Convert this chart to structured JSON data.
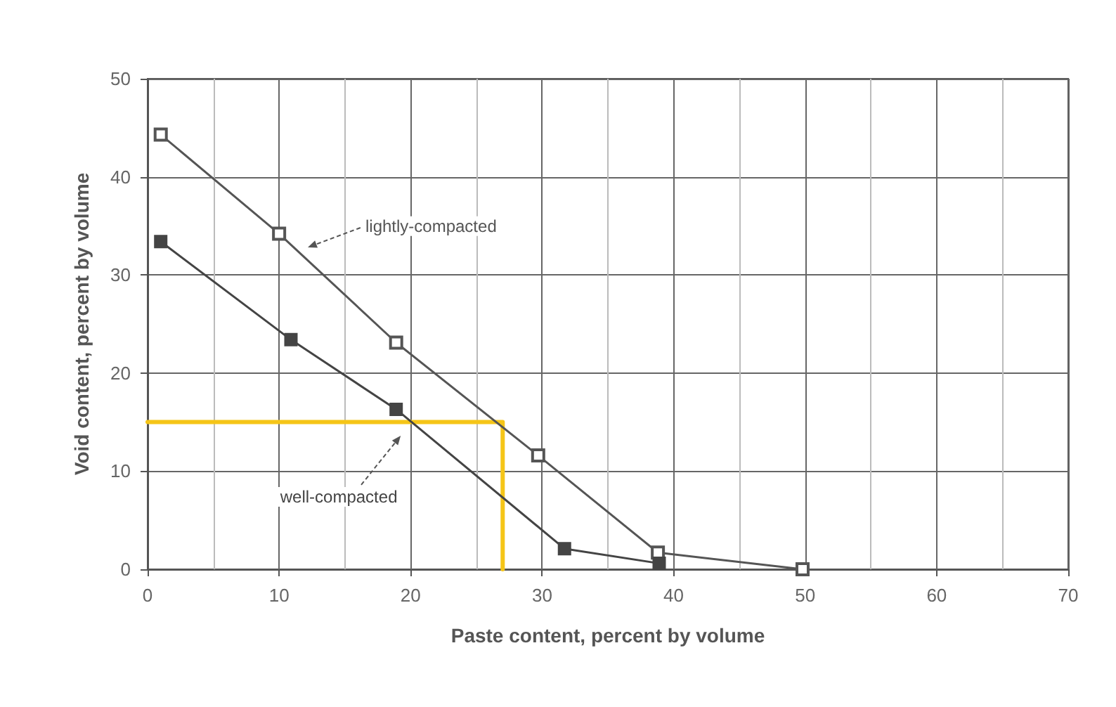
{
  "chart_data": {
    "type": "line",
    "xlabel": "Paste content, percent by volume",
    "ylabel": "Void content, percent by volume",
    "xlim": [
      0,
      70
    ],
    "xticks": [
      0,
      10,
      20,
      30,
      40,
      50,
      60,
      70
    ],
    "ylim": [
      0,
      50
    ],
    "yticks": [
      0,
      10,
      20,
      30,
      40,
      50
    ],
    "grid": true,
    "marker": "square",
    "line_style": "solid",
    "series": [
      {
        "name": "lightly-compacted",
        "color": "#555555",
        "x": [
          1,
          10,
          18.9,
          29.7,
          38.8,
          49.8
        ],
        "values": [
          44.3,
          34.2,
          23.1,
          11.6,
          1.7,
          0
        ]
      },
      {
        "name": "well-compacted",
        "color": "#444444",
        "x": [
          1,
          10.9,
          18.9,
          31.7,
          38.9
        ],
        "values": [
          33.4,
          23.4,
          16.3,
          2.1,
          0.6
        ]
      },
      {
        "color": "#f5c518",
        "marker": "none",
        "x": [
          0,
          27,
          27
        ],
        "values": [
          15,
          15,
          0
        ]
      }
    ]
  }
}
